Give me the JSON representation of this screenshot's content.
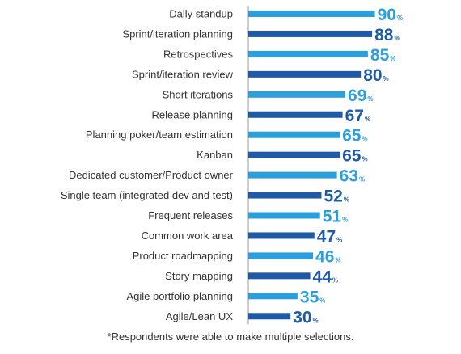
{
  "chart_data": {
    "type": "bar",
    "orientation": "horizontal",
    "categories": [
      "Daily standup",
      "Sprint/iteration planning",
      "Retrospectives",
      "Sprint/iteration review",
      "Short iterations",
      "Release planning",
      "Planning poker/team estimation",
      "Kanban",
      "Dedicated customer/Product owner",
      "Single team (integrated dev and test)",
      "Frequent releases",
      "Common work area",
      "Product roadmapping",
      "Story mapping",
      "Agile portfolio planning",
      "Agile/Lean UX"
    ],
    "values": [
      90,
      88,
      85,
      80,
      69,
      67,
      65,
      65,
      63,
      52,
      51,
      47,
      46,
      44,
      35,
      30
    ],
    "value_suffix": "%",
    "xlim": [
      0,
      100
    ],
    "grid": false,
    "legend": "none",
    "colors": {
      "light": "#2b9fdc",
      "dark": "#1f5aa6",
      "axis": "#9a9a9a",
      "category_label": "#333333"
    },
    "color_pattern": [
      "light",
      "dark",
      "light",
      "dark",
      "light",
      "dark",
      "light",
      "dark",
      "light",
      "dark",
      "light",
      "dark",
      "light",
      "dark",
      "light",
      "dark"
    ]
  },
  "footnote": "*Respondents were able to make multiple selections."
}
